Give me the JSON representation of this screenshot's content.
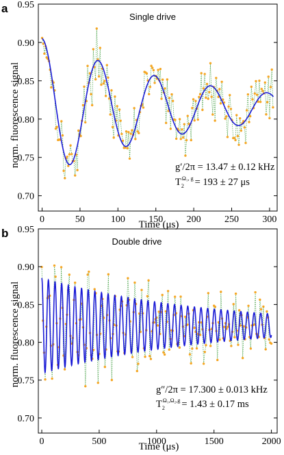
{
  "chart_data": [
    {
      "panel_label": "a",
      "type": "scatter",
      "title": "Single drive",
      "xlabel": "Time (μs)",
      "ylabel": "norm. fluorescence signal",
      "xlim": [
        -5,
        310
      ],
      "ylim": [
        0.68,
        0.95
      ],
      "xticks": [
        0,
        50,
        100,
        150,
        200,
        250,
        300
      ],
      "yticks": [
        0.7,
        0.75,
        0.8,
        0.85,
        0.9,
        0.95
      ],
      "ytick_labels": [
        "0.70",
        "0.75",
        "0.80",
        "0.85",
        "0.90",
        "0.95"
      ],
      "colors": {
        "data": "#f5a623",
        "connector": "#3a9a3a",
        "fit": "#1a1ad6"
      },
      "fit": {
        "offset": 0.815,
        "amplitude": 0.09,
        "period_us": 74.2,
        "T2_us": 193,
        "x_start": 0,
        "x_end": 305
      },
      "data_sampling": {
        "x_start": 0,
        "x_end": 305,
        "step_us": 1.5,
        "noise": 0.028
      },
      "annotation": {
        "line1_lhs": "g′/2π = ",
        "line1_rhs": "13.47 ± 0.12 kHz",
        "line2_base": "T",
        "line2_sub": "2",
        "line2_sup": "Ω₁, g",
        "line2_rhs": "=     193 ± 27 μs"
      }
    },
    {
      "panel_label": "b",
      "type": "scatter",
      "title": "Double drive",
      "xlabel": "Time (μs)",
      "ylabel": "norm. fluorescence signal",
      "xlim": [
        -30,
        2050
      ],
      "ylim": [
        0.68,
        0.95
      ],
      "xticks": [
        0,
        500,
        1000,
        1500,
        2000
      ],
      "yticks": [
        0.7,
        0.75,
        0.8,
        0.85,
        0.9,
        0.95
      ],
      "ytick_labels": [
        "0.70",
        "0.75",
        "0.80",
        "0.85",
        "0.90",
        "0.95"
      ],
      "colors": {
        "data": "#f5a623",
        "connector": "#3a9a3a",
        "fit": "#1a1ad6"
      },
      "fit": {
        "offset": 0.822,
        "amplitude": 0.063,
        "period_us": 57.8,
        "T2_us": 1430,
        "x_start": 0,
        "x_end": 2000
      },
      "data_sampling": {
        "x_start": 0,
        "x_end": 2000,
        "step_us": 10,
        "noise": 0.032
      },
      "annotation": {
        "line1_lhs": "g″/2π = ",
        "line1_rhs": "17.300 ± 0.013 kHz",
        "line2_base": "T",
        "line2_sub": "2",
        "line2_sup": "Ω₁,Ω₂,g",
        "line2_rhs": "=      1.43 ± 0.17 ms"
      }
    }
  ]
}
